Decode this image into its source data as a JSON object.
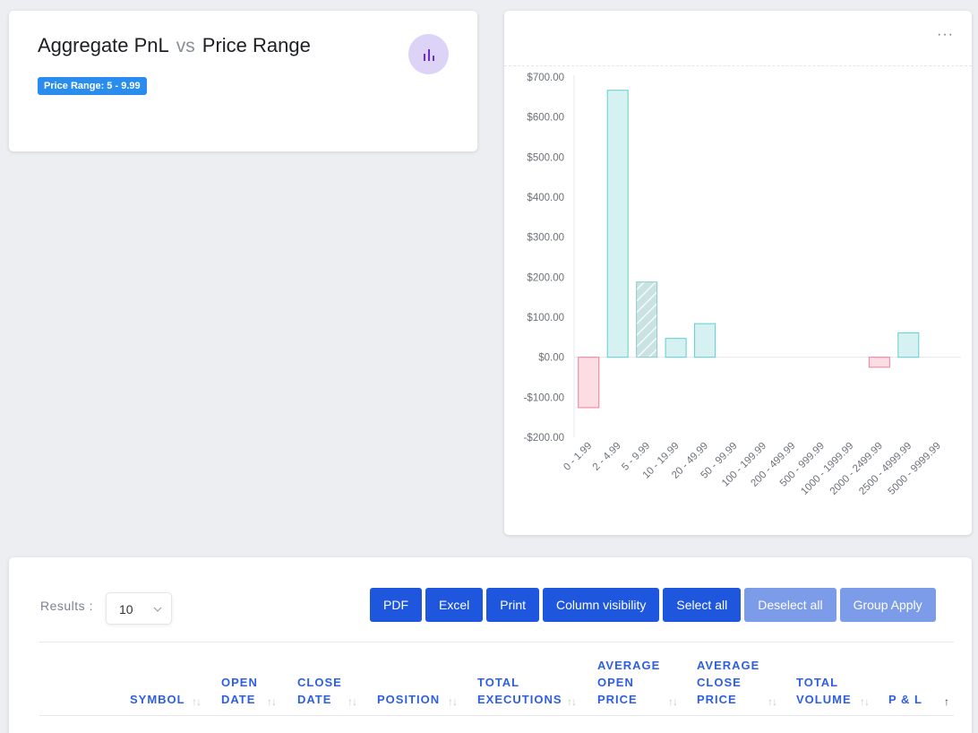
{
  "header": {
    "title_left": "Aggregate PnL",
    "title_vs": "vs",
    "title_right": "Price Range",
    "badge": "Price Range: 5 - 9.99",
    "icon": "bar-chart-icon",
    "icon_bg": "#ddd3f6",
    "icon_color": "#6a2fd6"
  },
  "chart_card": {
    "menu_label": "···"
  },
  "chart_data": {
    "type": "bar",
    "categories": [
      "0 - 1.99",
      "2 - 4.99",
      "5 - 9.99",
      "10 - 19.99",
      "20 - 49.99",
      "50 - 99.99",
      "100 - 199.99",
      "200 - 499.99",
      "500 - 999.99",
      "1000 - 1999.99",
      "2000 - 2499.99",
      "2500 - 4999.99",
      "5000 - 9999.99"
    ],
    "values": [
      -126,
      667,
      188,
      47,
      84,
      0,
      0,
      0,
      0,
      0,
      -25,
      61,
      0
    ],
    "selected_category": "5 - 9.99",
    "ylim": [
      -200,
      700
    ],
    "yticks": [
      700,
      600,
      500,
      400,
      300,
      200,
      100,
      0,
      -100,
      -200
    ],
    "ytick_labels": [
      "$700.00",
      "$600.00",
      "$500.00",
      "$400.00",
      "$300.00",
      "$200.00",
      "$100.00",
      "$0.00",
      "-$100.00",
      "-$200.00"
    ],
    "positive_fill": "#d6f1f1",
    "positive_stroke": "#5fcfcf",
    "negative_fill": "#fbdde3",
    "negative_stroke": "#f07f98",
    "selected_fill": "#c9e3e3",
    "grid": false
  },
  "table": {
    "results_label": "Results :",
    "page_size": "10",
    "buttons": [
      {
        "label": "PDF",
        "enabled": true
      },
      {
        "label": "Excel",
        "enabled": true
      },
      {
        "label": "Print",
        "enabled": true
      },
      {
        "label": "Column visibility",
        "enabled": true
      },
      {
        "label": "Select all",
        "enabled": true
      },
      {
        "label": "Deselect all",
        "enabled": false
      },
      {
        "label": "Group Apply",
        "enabled": false
      }
    ],
    "columns": [
      {
        "key": "symbol",
        "lines": [
          "SYMBOL"
        ]
      },
      {
        "key": "open-date",
        "lines": [
          "OPEN",
          "DATE"
        ]
      },
      {
        "key": "close-date",
        "lines": [
          "CLOSE",
          "DATE"
        ]
      },
      {
        "key": "position",
        "lines": [
          "POSITION"
        ]
      },
      {
        "key": "total-executions",
        "lines": [
          "TOTAL",
          "EXECUTIONS"
        ]
      },
      {
        "key": "average-open-price",
        "lines": [
          "AVERAGE",
          "OPEN",
          "PRICE"
        ]
      },
      {
        "key": "average-close-price",
        "lines": [
          "AVERAGE",
          "CLOSE",
          "PRICE"
        ]
      },
      {
        "key": "total-volume",
        "lines": [
          "TOTAL",
          "VOLUME"
        ]
      },
      {
        "key": "p-and-l",
        "lines": [
          "P & L"
        ]
      }
    ]
  }
}
